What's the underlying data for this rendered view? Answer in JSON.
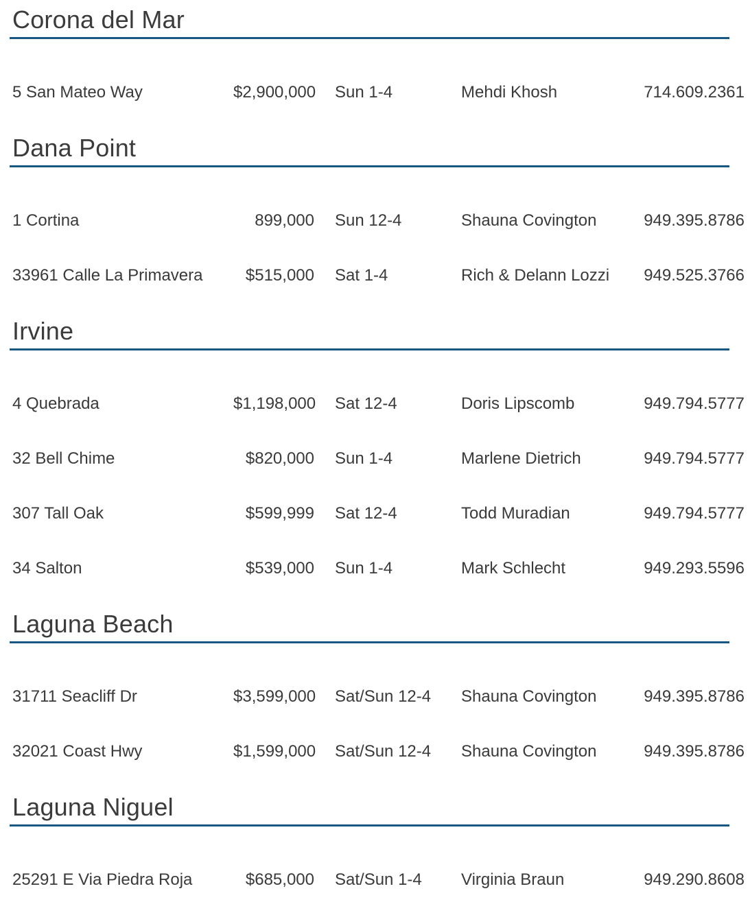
{
  "colors": {
    "background": "#ffffff",
    "heading_text": "#3b3b3b",
    "body_text": "#3a3a3a",
    "heading_rule": "#195783"
  },
  "sections": [
    {
      "city": "Corona del Mar",
      "listings": [
        {
          "address": "5 San Mateo Way",
          "price": "$2,900,000",
          "time": "Sun 1-4",
          "agent": "Mehdi Khosh",
          "phone": "714.609.2361"
        }
      ]
    },
    {
      "city": "Dana Point",
      "listings": [
        {
          "address": "1 Cortina",
          "price": "899,000",
          "time": "Sun 12-4",
          "agent": "Shauna Covington",
          "phone": "949.395.8786"
        },
        {
          "address": "33961 Calle La Primavera",
          "price": "$515,000",
          "time": "Sat 1-4",
          "agent": "Rich & Delann Lozzi",
          "phone": "949.525.3766"
        }
      ]
    },
    {
      "city": "Irvine",
      "listings": [
        {
          "address": "4 Quebrada",
          "price": "$1,198,000",
          "time": "Sat 12-4",
          "agent": "Doris Lipscomb",
          "phone": "949.794.5777"
        },
        {
          "address": "32 Bell Chime",
          "price": "$820,000",
          "time": "Sun 1-4",
          "agent": "Marlene Dietrich",
          "phone": "949.794.5777"
        },
        {
          "address": "307 Tall Oak",
          "price": "$599,999",
          "time": "Sat 12-4",
          "agent": "Todd Muradian",
          "phone": "949.794.5777"
        },
        {
          "address": "34 Salton",
          "price": "$539,000",
          "time": "Sun 1-4",
          "agent": "Mark Schlecht",
          "phone": "949.293.5596"
        }
      ]
    },
    {
      "city": "Laguna Beach",
      "listings": [
        {
          "address": "31711 Seacliff Dr",
          "price": "$3,599,000",
          "time": "Sat/Sun 12-4",
          "agent": "Shauna Covington",
          "phone": "949.395.8786"
        },
        {
          "address": "32021 Coast Hwy",
          "price": "$1,599,000",
          "time": "Sat/Sun 12-4",
          "agent": "Shauna Covington",
          "phone": "949.395.8786"
        }
      ]
    },
    {
      "city": "Laguna Niguel",
      "listings": [
        {
          "address": "25291 E Via Piedra Roja",
          "price": "$685,000",
          "time": "Sat/Sun 1-4",
          "agent": "Virginia Braun",
          "phone": "949.290.8608"
        }
      ]
    }
  ]
}
